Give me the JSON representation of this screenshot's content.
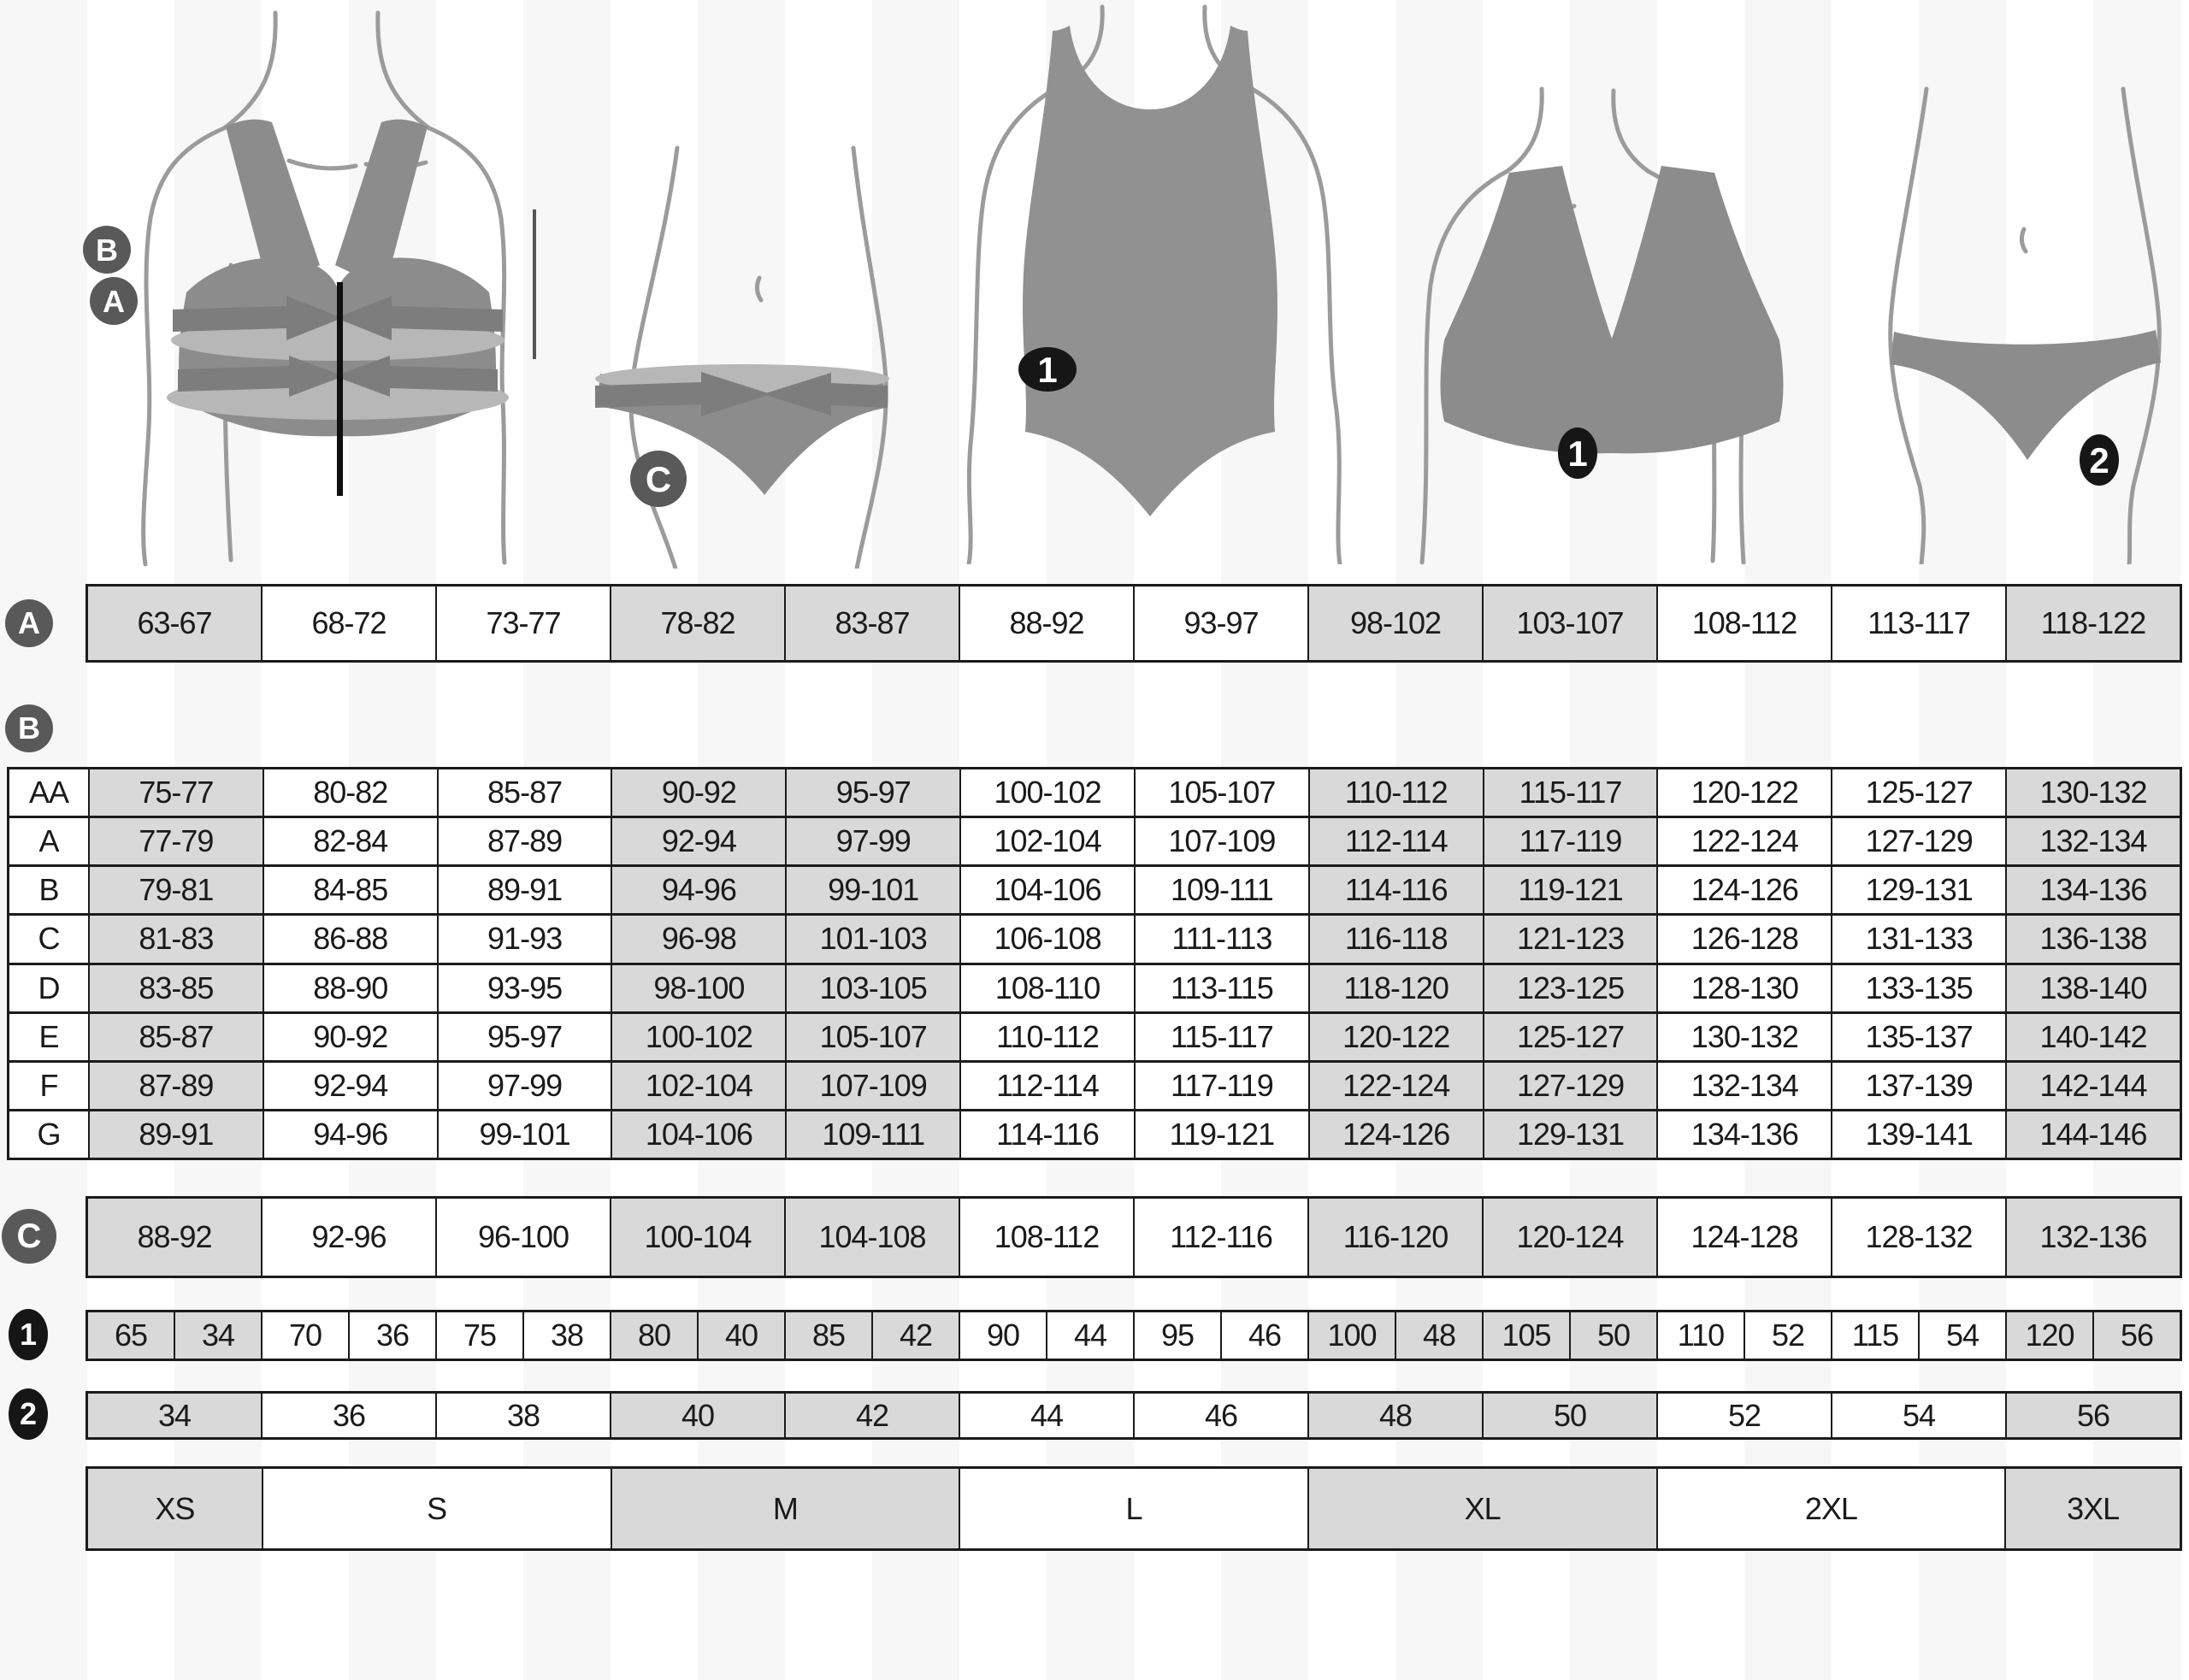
{
  "tables": {
    "underbust": {
      "label": "A",
      "cells": [
        "63-67",
        "68-72",
        "73-77",
        "78-82",
        "83-87",
        "88-92",
        "93-97",
        "98-102",
        "103-107",
        "108-112",
        "113-117",
        "118-122"
      ]
    },
    "bust": {
      "label": "B",
      "rows": [
        {
          "cup": "AA",
          "cells": [
            "75-77",
            "80-82",
            "85-87",
            "90-92",
            "95-97",
            "100-102",
            "105-107",
            "110-112",
            "115-117",
            "120-122",
            "125-127",
            "130-132"
          ]
        },
        {
          "cup": "A",
          "cells": [
            "77-79",
            "82-84",
            "87-89",
            "92-94",
            "97-99",
            "102-104",
            "107-109",
            "112-114",
            "117-119",
            "122-124",
            "127-129",
            "132-134"
          ]
        },
        {
          "cup": "B",
          "cells": [
            "79-81",
            "84-85",
            "89-91",
            "94-96",
            "99-101",
            "104-106",
            "109-111",
            "114-116",
            "119-121",
            "124-126",
            "129-131",
            "134-136"
          ]
        },
        {
          "cup": "C",
          "cells": [
            "81-83",
            "86-88",
            "91-93",
            "96-98",
            "101-103",
            "106-108",
            "111-113",
            "116-118",
            "121-123",
            "126-128",
            "131-133",
            "136-138"
          ]
        },
        {
          "cup": "D",
          "cells": [
            "83-85",
            "88-90",
            "93-95",
            "98-100",
            "103-105",
            "108-110",
            "113-115",
            "118-120",
            "123-125",
            "128-130",
            "133-135",
            "138-140"
          ]
        },
        {
          "cup": "E",
          "cells": [
            "85-87",
            "90-92",
            "95-97",
            "100-102",
            "105-107",
            "110-112",
            "115-117",
            "120-122",
            "125-127",
            "130-132",
            "135-137",
            "140-142"
          ]
        },
        {
          "cup": "F",
          "cells": [
            "87-89",
            "92-94",
            "97-99",
            "102-104",
            "107-109",
            "112-114",
            "117-119",
            "122-124",
            "127-129",
            "132-134",
            "137-139",
            "142-144"
          ]
        },
        {
          "cup": "G",
          "cells": [
            "89-91",
            "94-96",
            "99-101",
            "104-106",
            "109-111",
            "114-116",
            "119-121",
            "124-126",
            "129-131",
            "134-136",
            "139-141",
            "144-146"
          ]
        }
      ]
    },
    "hips": {
      "label": "C",
      "cells": [
        "88-92",
        "92-96",
        "96-100",
        "100-104",
        "104-108",
        "108-112",
        "112-116",
        "116-120",
        "120-124",
        "124-128",
        "128-132",
        "132-136"
      ]
    },
    "band_sizes": {
      "label": "1",
      "cells": [
        "65",
        "34",
        "70",
        "36",
        "75",
        "38",
        "80",
        "40",
        "85",
        "42",
        "90",
        "44",
        "95",
        "46",
        "100",
        "48",
        "105",
        "50",
        "110",
        "52",
        "115",
        "54",
        "120",
        "56"
      ]
    },
    "confection_sizes": {
      "label": "2",
      "cells": [
        "34",
        "36",
        "38",
        "40",
        "42",
        "44",
        "46",
        "48",
        "50",
        "52",
        "54",
        "56"
      ]
    },
    "letter_sizes": {
      "cells": [
        "XS",
        "S",
        "M",
        "L",
        "XL",
        "2XL",
        "3XL"
      ],
      "spans": [
        1,
        2,
        2,
        2,
        2,
        2,
        1
      ]
    }
  },
  "figure_badges": {
    "bust_badge": "B",
    "underbust_badge": "A",
    "hips_badge": "C",
    "swimsuit_badge": "1",
    "bra_badge": "1",
    "panty_badge": "2"
  },
  "colors": {
    "cell_shaded": "#d9d9d9",
    "grid_line": "#1b1b1b",
    "label_badge": "#595959",
    "number_badge": "#161616",
    "garment_fill": "#8c8c8c",
    "silhouette_stroke": "#9b9b9b",
    "band_fill": "#7d7d7d",
    "band_highlight": "#b7b7b7"
  }
}
